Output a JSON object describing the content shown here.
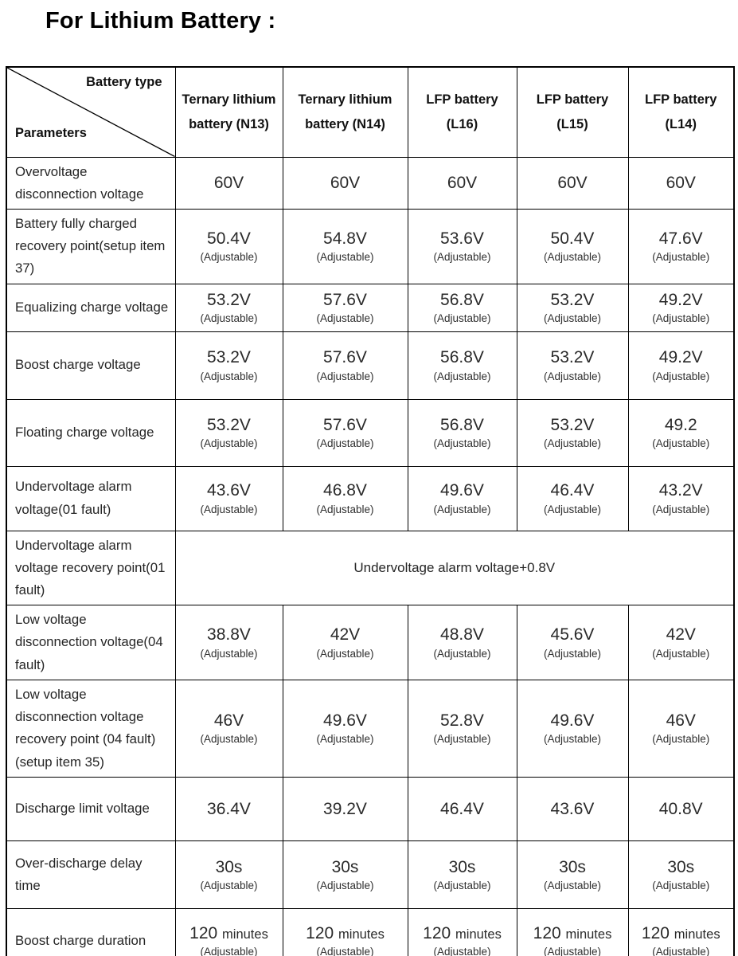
{
  "page": {
    "title": "For Lithium Battery :"
  },
  "colors": {
    "border": "#000000",
    "text": "#1c1c1c",
    "background": "#ffffff"
  },
  "table": {
    "corner": {
      "diagonal_top": "Battery type",
      "diagonal_bottom": "Parameters"
    },
    "columns": [
      "Ternary lithium battery (N13)",
      "Ternary lithium battery (N14)",
      "LFP battery (L16)",
      "LFP battery (L15)",
      "LFP battery (L14)"
    ],
    "rows": [
      {
        "param": "Overvoltage disconnection voltage",
        "cells": [
          {
            "v": "60V"
          },
          {
            "v": "60V"
          },
          {
            "v": "60V"
          },
          {
            "v": "60V"
          },
          {
            "v": "60V"
          }
        ]
      },
      {
        "param": "Battery fully charged recovery point(setup item 37)",
        "cells": [
          {
            "v": "50.4V",
            "note": "(Adjustable)"
          },
          {
            "v": "54.8V",
            "note": "(Adjustable)"
          },
          {
            "v": "53.6V",
            "note": "(Adjustable)"
          },
          {
            "v": "50.4V",
            "note": "(Adjustable)"
          },
          {
            "v": "47.6V",
            "note": "(Adjustable)"
          }
        ]
      },
      {
        "param": "Equalizing charge voltage",
        "cells": [
          {
            "v": "53.2V",
            "note": "(Adjustable)"
          },
          {
            "v": "57.6V",
            "note": "(Adjustable)"
          },
          {
            "v": "56.8V",
            "note": "(Adjustable)"
          },
          {
            "v": "53.2V",
            "note": "(Adjustable)"
          },
          {
            "v": "49.2V",
            "note": "(Adjustable)"
          }
        ]
      },
      {
        "param": "Boost charge voltage",
        "cells": [
          {
            "v": "53.2V",
            "note": "(Adjustable)"
          },
          {
            "v": "57.6V",
            "note": "(Adjustable)"
          },
          {
            "v": "56.8V",
            "note": "(Adjustable)"
          },
          {
            "v": "53.2V",
            "note": "(Adjustable)"
          },
          {
            "v": "49.2V",
            "note": "(Adjustable)"
          }
        ]
      },
      {
        "param": "Floating charge voltage",
        "cells": [
          {
            "v": "53.2V",
            "note": "(Adjustable)"
          },
          {
            "v": "57.6V",
            "note": "(Adjustable)"
          },
          {
            "v": "56.8V",
            "note": "(Adjustable)"
          },
          {
            "v": "53.2V",
            "note": "(Adjustable)"
          },
          {
            "v": "49.2",
            "note": "(Adjustable)"
          }
        ]
      },
      {
        "param": "Undervoltage alarm voltage(01 fault)",
        "cells": [
          {
            "v": "43.6V",
            "note": "(Adjustable)"
          },
          {
            "v": "46.8V",
            "note": "(Adjustable)"
          },
          {
            "v": "49.6V",
            "note": "(Adjustable)"
          },
          {
            "v": "46.4V",
            "note": "(Adjustable)"
          },
          {
            "v": "43.2V",
            "note": "(Adjustable)"
          }
        ]
      },
      {
        "param": "Undervoltage alarm voltage recovery point(01 fault)",
        "merged": "Undervoltage alarm voltage+0.8V"
      },
      {
        "param": "Low voltage disconnection voltage(04 fault)",
        "cells": [
          {
            "v": "38.8V",
            "note": "(Adjustable)"
          },
          {
            "v": "42V",
            "note": "(Adjustable)"
          },
          {
            "v": "48.8V",
            "note": "(Adjustable)"
          },
          {
            "v": "45.6V",
            "note": "(Adjustable)"
          },
          {
            "v": "42V",
            "note": "(Adjustable)"
          }
        ]
      },
      {
        "param": "Low voltage disconnection voltage recovery point (04 fault)(setup item 35)",
        "cells": [
          {
            "v": "46V",
            "note": "(Adjustable)"
          },
          {
            "v": "49.6V",
            "note": "(Adjustable)"
          },
          {
            "v": "52.8V",
            "note": "(Adjustable)"
          },
          {
            "v": "49.6V",
            "note": "(Adjustable)"
          },
          {
            "v": "46V",
            "note": "(Adjustable)"
          }
        ]
      },
      {
        "param": "Discharge limit voltage",
        "cells": [
          {
            "v": "36.4V"
          },
          {
            "v": "39.2V"
          },
          {
            "v": "46.4V"
          },
          {
            "v": "43.6V"
          },
          {
            "v": "40.8V"
          }
        ]
      },
      {
        "param": "Over-discharge delay time",
        "cells": [
          {
            "v": "30s",
            "note": "(Adjustable)"
          },
          {
            "v": "30s",
            "note": "(Adjustable)"
          },
          {
            "v": "30s",
            "note": "(Adjustable)"
          },
          {
            "v": "30s",
            "note": "(Adjustable)"
          },
          {
            "v": "30s",
            "note": "(Adjustable)"
          }
        ]
      },
      {
        "param": "Boost charge duration",
        "cells": [
          {
            "v": "120",
            "unit": "minutes",
            "note": "(Adjustable)"
          },
          {
            "v": "120",
            "unit": "minutes",
            "note": "(Adjustable)"
          },
          {
            "v": "120",
            "unit": "minutes",
            "note": "(Adjustable)"
          },
          {
            "v": "120",
            "unit": "minutes",
            "note": "(Adjustable)"
          },
          {
            "v": "120",
            "unit": "minutes",
            "note": "(Adjustable)"
          }
        ]
      }
    ]
  }
}
